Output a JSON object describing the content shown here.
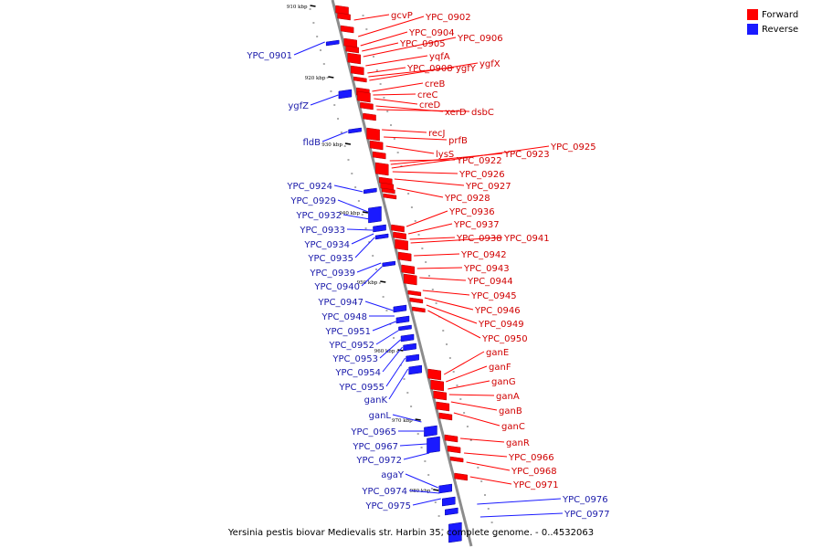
{
  "colors": {
    "forward": "#ff0000",
    "reverse": "#1a1aff",
    "axis": "#8c8c8c",
    "forward_line": "#ff0000",
    "reverse_line": "#1a1aff"
  },
  "legend": {
    "forward_label": "Forward",
    "reverse_label": "Reverse"
  },
  "caption": "Yersinia pestis biovar Medievalis str. Harbin 35, complete genome. - 0..4532063",
  "chart_data": {
    "type": "diagram",
    "title": "Yersinia pestis biovar Medievalis str. Harbin 35, complete genome. - 0..4532063",
    "axis_ticks": [
      "910 kbp",
      "920 kbp",
      "930 kbp",
      "940 kbp",
      "950 kbp",
      "960 kbp",
      "970 kbp",
      "980 kbp"
    ],
    "forward_genes": [
      "gcvP",
      "YPC_0902",
      "YPC_0904",
      "YPC_0905",
      "YPC_0906",
      "yqfA",
      "YPC_0908",
      "ygfY",
      "ygfX",
      "creB",
      "creC",
      "creD",
      "xerD",
      "dsbC",
      "recJ",
      "prfB",
      "lysS",
      "YPC_0922",
      "YPC_0923",
      "YPC_0925",
      "YPC_0926",
      "YPC_0927",
      "YPC_0928",
      "YPC_0936",
      "YPC_0937",
      "YPC_0938",
      "YPC_0941",
      "YPC_0942",
      "YPC_0943",
      "YPC_0944",
      "YPC_0945",
      "YPC_0946",
      "YPC_0949",
      "YPC_0950",
      "ganE",
      "ganF",
      "ganG",
      "ganA",
      "ganB",
      "ganC",
      "ganR",
      "YPC_0966",
      "YPC_0968",
      "YPC_0971"
    ],
    "reverse_genes": [
      "YPC_0901",
      "ygfZ",
      "fldB",
      "YPC_0924",
      "YPC_0929",
      "YPC_0932",
      "YPC_0933",
      "YPC_0934",
      "YPC_0935",
      "YPC_0939",
      "YPC_0940",
      "YPC_0947",
      "YPC_0948",
      "YPC_0951",
      "YPC_0952",
      "YPC_0953",
      "YPC_0954",
      "YPC_0955",
      "ganK",
      "ganL",
      "YPC_0965",
      "YPC_0967",
      "YPC_0972",
      "agaY",
      "YPC_0974",
      "YPC_0975",
      "YPC_0976",
      "YPC_0977"
    ]
  }
}
